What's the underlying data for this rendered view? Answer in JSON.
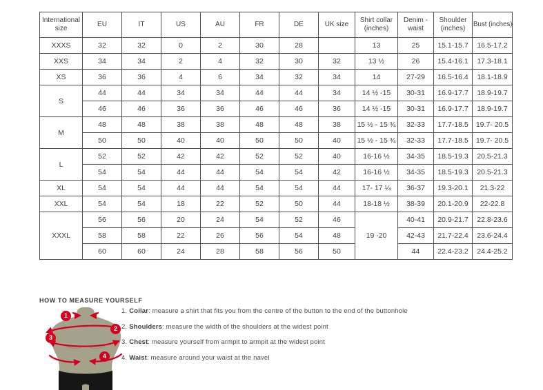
{
  "size_table": {
    "headers": [
      "International size",
      "EU",
      "IT",
      "US",
      "AU",
      "FR",
      "DE",
      "UK size",
      "Shirt collar (inches)",
      "Denim - waist",
      "Shoulder (inches)",
      "Bust (inches)"
    ],
    "rows": [
      [
        "XXXS",
        "32",
        "32",
        "0",
        "2",
        "30",
        "28",
        "",
        "13",
        "25",
        "15.1-15.7",
        "16.5-17.2"
      ],
      [
        "XXS",
        "34",
        "34",
        "2",
        "4",
        "32",
        "30",
        "32",
        "13 ½",
        "26",
        "15.4-16.1",
        "17.3-18.1"
      ],
      [
        "XS",
        "36",
        "36",
        "4",
        "6",
        "34",
        "32",
        "34",
        "14",
        "27-29",
        "16.5-16.4",
        "18.1-18.9"
      ],
      [
        {
          "t": "S",
          "rs": 2
        },
        "44",
        "44",
        "34",
        "34",
        "44",
        "44",
        "34",
        "14 ½ -15",
        "30-31",
        "16.9-17.7",
        "18.9-19.7"
      ],
      [
        "46",
        "46",
        "36",
        "36",
        "46",
        "46",
        "36",
        "14 ½ -15",
        "30-31",
        "16.9-17.7",
        "18.9-19.7"
      ],
      [
        {
          "t": "M",
          "rs": 2
        },
        "48",
        "48",
        "38",
        "38",
        "48",
        "48",
        "38",
        "15 ½ - 15 ¾",
        "32-33",
        "17.7-18.5",
        "19.7- 20.5"
      ],
      [
        "50",
        "50",
        "40",
        "40",
        "50",
        "50",
        "40",
        "15 ½ - 15 ¾",
        "32-33",
        "17.7-18.5",
        "19.7- 20.5"
      ],
      [
        {
          "t": "L",
          "rs": 2
        },
        "52",
        "52",
        "42",
        "42",
        "52",
        "52",
        "40",
        "16-16 ½",
        "34-35",
        "18.5-19.3",
        "20.5-21.3"
      ],
      [
        "54",
        "54",
        "44",
        "44",
        "54",
        "54",
        "42",
        "16-16 ½",
        "34-35",
        "18.5-19.3",
        "20.5-21.3"
      ],
      [
        "XL",
        "54",
        "54",
        "44",
        "44",
        "54",
        "54",
        "44",
        "17- 17 ¼",
        "36-37",
        "19.3-20.1",
        "21.3-22"
      ],
      [
        "XXL",
        "54",
        "54",
        "18",
        "22",
        "52",
        "50",
        "44",
        "18-18 ½",
        "38-39",
        "20.1-20.9",
        "22-22.8"
      ],
      [
        {
          "t": "XXXL",
          "rs": 3
        },
        "56",
        "56",
        "20",
        "24",
        "54",
        "52",
        "46",
        {
          "t": "19 -20",
          "rs": 3
        },
        "40-41",
        "20.9-21.7",
        "22.8-23.6"
      ],
      [
        "58",
        "58",
        "22",
        "26",
        "56",
        "54",
        "48",
        "42-43",
        "21.7-22.4",
        "23.6-24.4"
      ],
      [
        "60",
        "60",
        "24",
        "28",
        "58",
        "56",
        "50",
        "44",
        "22.4-23.2",
        "24.4-25.2"
      ]
    ]
  },
  "how_to_measure": {
    "title": "HOW TO MEASURE YOURSELF",
    "steps": [
      {
        "num": "1.",
        "label": "Collar",
        "text": ": measure a shirt that fits you from the centre of the button to the end of the buttonhole"
      },
      {
        "num": "2.",
        "label": "Shoulders",
        "text": ": measure the width of the shoulders at the widest point"
      },
      {
        "num": "3.",
        "label": "Chest",
        "text": ": measure yourself from armpit to armpit at the widest point"
      },
      {
        "num": "4.",
        "label": "Waist",
        "text": ": measure around your waist at the navel"
      }
    ],
    "figure_markers": [
      "1",
      "2",
      "3",
      "4"
    ]
  },
  "colors": {
    "accent_red": "#d5001f",
    "mannequin_body": "#a5a28c",
    "mannequin_shorts": "#161616",
    "table_border": "#4d4d4d"
  }
}
